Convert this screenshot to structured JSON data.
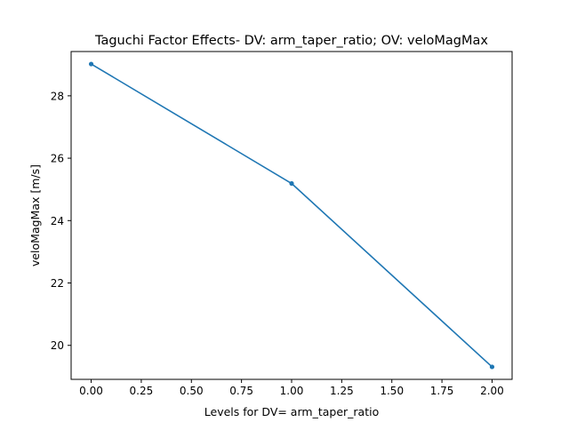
{
  "chart_data": {
    "type": "line",
    "title": "Taguchi Factor Effects- DV: arm_taper_ratio; OV: veloMagMax",
    "xlabel": "Levels for DV= arm_taper_ratio",
    "ylabel": "veloMagMax [m/s]",
    "xlim": [
      -0.1,
      2.1
    ],
    "ylim": [
      18.91,
      29.42
    ],
    "xticks": [
      0.0,
      0.25,
      0.5,
      0.75,
      1.0,
      1.25,
      1.5,
      1.75,
      2.0
    ],
    "xtick_labels": [
      "0.00",
      "0.25",
      "0.50",
      "0.75",
      "1.00",
      "1.25",
      "1.50",
      "1.75",
      "2.00"
    ],
    "yticks": [
      20,
      22,
      24,
      26,
      28
    ],
    "ytick_labels": [
      "20",
      "22",
      "24",
      "26",
      "28"
    ],
    "grid": false,
    "series": [
      {
        "x": [
          0,
          1,
          2
        ],
        "y": [
          29.02,
          25.19,
          19.31
        ],
        "color": "#1f77b4",
        "marker": "circle"
      }
    ]
  }
}
